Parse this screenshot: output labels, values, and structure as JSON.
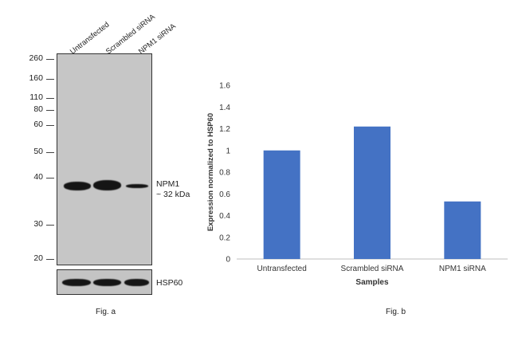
{
  "fig_a": {
    "lanes": [
      "Untransfected",
      "Scrambled siRNA",
      "NPM1 siRNA"
    ],
    "markers": [
      "260",
      "160",
      "110",
      "80",
      "60",
      "50",
      "40",
      "30",
      "20"
    ],
    "band_label_line1": "NPM1",
    "band_label_line2": "~ 32 kDa",
    "loading_label": "HSP60",
    "caption": "Fig. a",
    "npm1_relative_intensity": [
      1.0,
      1.05,
      0.45
    ],
    "hsp60_relative_intensity": [
      1.0,
      1.0,
      0.95
    ]
  },
  "fig_b": {
    "caption": "Fig. b"
  },
  "chart_data": {
    "type": "bar",
    "categories": [
      "Untransfected",
      "Scrambled siRNA",
      "NPM1 siRNA"
    ],
    "values": [
      1.0,
      1.22,
      0.53
    ],
    "xlabel": "Samples",
    "ylabel": "Expression normalized to HSP60",
    "ylim": [
      0,
      1.6
    ],
    "yticks": [
      "0",
      "0.2",
      "0.4",
      "0.6",
      "0.8",
      "1",
      "1.2",
      "1.4",
      "1.6"
    ],
    "grid": false,
    "bar_color": "#4472c4"
  }
}
